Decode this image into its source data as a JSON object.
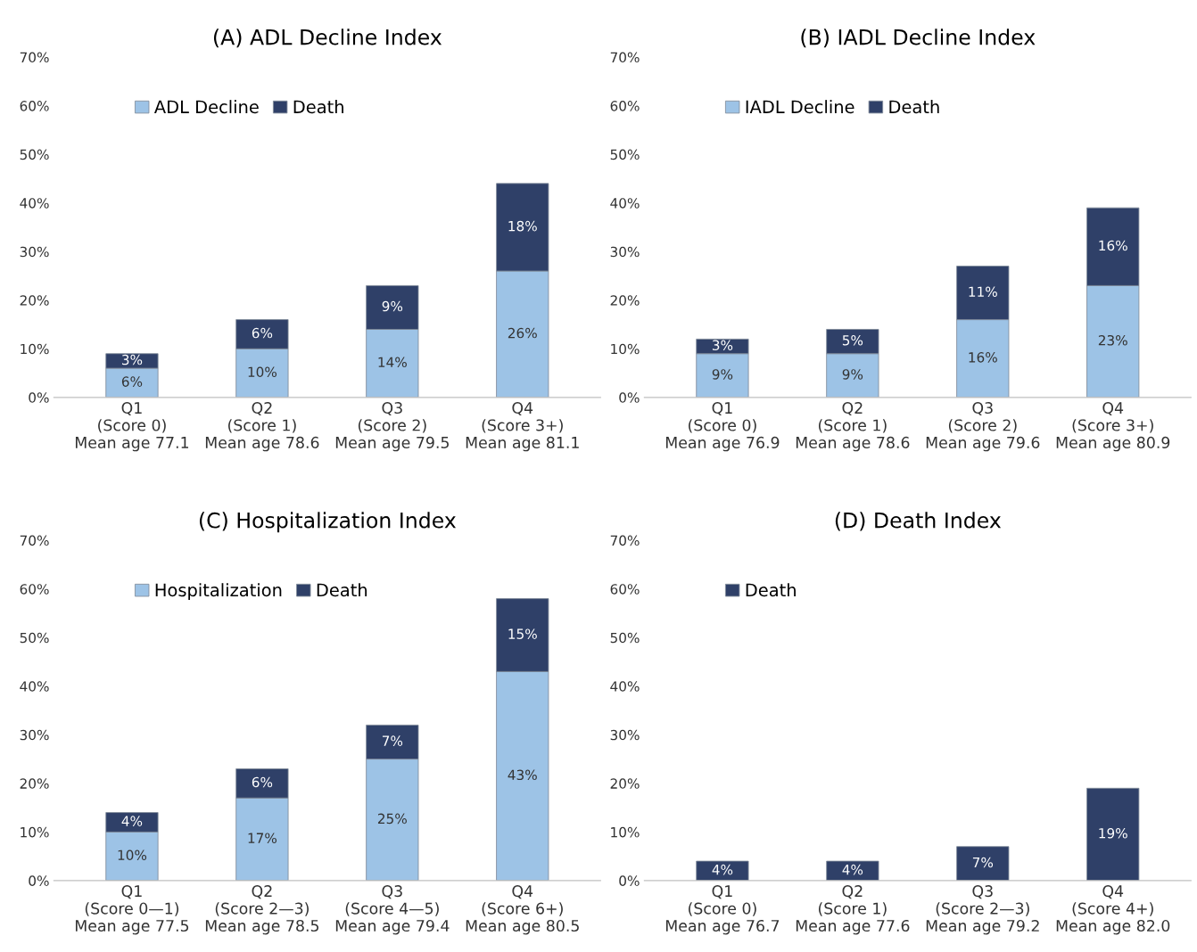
{
  "chart_data": [
    {
      "type": "bar",
      "title": "(A) ADL Decline Index",
      "stacked": true,
      "legend": "top left",
      "grid": false,
      "categories": [
        "Q1\n(Score 0)\nMean age 77.1",
        "Q2\n(Score 1)\nMean age 78.6",
        "Q3\n(Score 2)\nMean age 79.5",
        "Q4\n(Score 3+)\nMean age 81.1"
      ],
      "series": [
        {
          "name": "ADL Decline",
          "color": "#9dc3e6",
          "values": [
            6,
            10,
            14,
            26
          ],
          "value_labels": [
            "6%",
            "10%",
            "14%",
            "26%"
          ]
        },
        {
          "name": "Death",
          "color": "#2f4068",
          "values": [
            3,
            6,
            9,
            18
          ],
          "value_labels": [
            "3%",
            "6%",
            "9%",
            "18%"
          ]
        }
      ],
      "ylim": [
        0,
        70
      ],
      "yticks": [
        {
          "value": 0,
          "label": "0%"
        },
        {
          "value": 10,
          "label": "10%"
        },
        {
          "value": 20,
          "label": "20%"
        },
        {
          "value": 30,
          "label": "30%"
        },
        {
          "value": 40,
          "label": "40%"
        },
        {
          "value": 50,
          "label": "50%"
        },
        {
          "value": 60,
          "label": "60%"
        },
        {
          "value": 70,
          "label": "70%"
        }
      ]
    },
    {
      "type": "bar",
      "title": "(B) IADL Decline Index",
      "stacked": true,
      "legend": "top left",
      "grid": false,
      "categories": [
        "Q1\n(Score 0)\nMean age 76.9",
        "Q2\n(Score 1)\nMean age 78.6",
        "Q3\n(Score 2)\nMean age 79.6",
        "Q4\n(Score 3+)\nMean age 80.9"
      ],
      "series": [
        {
          "name": "IADL Decline",
          "color": "#9dc3e6",
          "values": [
            9,
            9,
            16,
            23
          ],
          "value_labels": [
            "9%",
            "9%",
            "16%",
            "23%"
          ]
        },
        {
          "name": "Death",
          "color": "#2f4068",
          "values": [
            3,
            5,
            11,
            16
          ],
          "value_labels": [
            "3%",
            "5%",
            "11%",
            "16%"
          ]
        }
      ],
      "ylim": [
        0,
        70
      ],
      "yticks": [
        {
          "value": 0,
          "label": "0%"
        },
        {
          "value": 10,
          "label": "10%"
        },
        {
          "value": 20,
          "label": "20%"
        },
        {
          "value": 30,
          "label": "30%"
        },
        {
          "value": 40,
          "label": "40%"
        },
        {
          "value": 50,
          "label": "50%"
        },
        {
          "value": 60,
          "label": "60%"
        },
        {
          "value": 70,
          "label": "70%"
        }
      ]
    },
    {
      "type": "bar",
      "title": "(C) Hospitalization Index",
      "stacked": true,
      "legend": "top left",
      "grid": false,
      "categories": [
        "Q1\n(Score 0—1)\nMean age 77.5",
        "Q2\n(Score 2—3)\nMean age 78.5",
        "Q3\n(Score 4—5)\nMean age 79.4",
        "Q4\n(Score 6+)\nMean age 80.5"
      ],
      "series": [
        {
          "name": "Hospitalization",
          "color": "#9dc3e6",
          "values": [
            10,
            17,
            25,
            43
          ],
          "value_labels": [
            "10%",
            "17%",
            "25%",
            "43%"
          ]
        },
        {
          "name": "Death",
          "color": "#2f4068",
          "values": [
            4,
            6,
            7,
            15
          ],
          "value_labels": [
            "4%",
            "6%",
            "7%",
            "15%"
          ]
        }
      ],
      "ylim": [
        0,
        70
      ],
      "yticks": [
        {
          "value": 0,
          "label": "0%"
        },
        {
          "value": 10,
          "label": "10%"
        },
        {
          "value": 20,
          "label": "20%"
        },
        {
          "value": 30,
          "label": "30%"
        },
        {
          "value": 40,
          "label": "40%"
        },
        {
          "value": 50,
          "label": "50%"
        },
        {
          "value": 60,
          "label": "60%"
        },
        {
          "value": 70,
          "label": "70%"
        }
      ]
    },
    {
      "type": "bar",
      "title": "(D) Death Index",
      "stacked": true,
      "legend": "top left",
      "grid": false,
      "categories": [
        "Q1\n(Score 0)\nMean age 76.7",
        "Q2\n(Score 1)\nMean age 77.6",
        "Q3\n(Score 2—3)\nMean age 79.2",
        "Q4\n(Score 4+)\nMean age 82.0"
      ],
      "series": [
        {
          "name": "Death",
          "color": "#2f4068",
          "values": [
            4,
            4,
            7,
            19
          ],
          "value_labels": [
            "4%",
            "4%",
            "7%",
            "19%"
          ]
        }
      ],
      "ylim": [
        0,
        70
      ],
      "yticks": [
        {
          "value": 0,
          "label": "0%"
        },
        {
          "value": 10,
          "label": "10%"
        },
        {
          "value": 20,
          "label": "20%"
        },
        {
          "value": 30,
          "label": "30%"
        },
        {
          "value": 40,
          "label": "40%"
        },
        {
          "value": 50,
          "label": "50%"
        },
        {
          "value": 60,
          "label": "60%"
        },
        {
          "value": 70,
          "label": "70%"
        }
      ]
    }
  ]
}
